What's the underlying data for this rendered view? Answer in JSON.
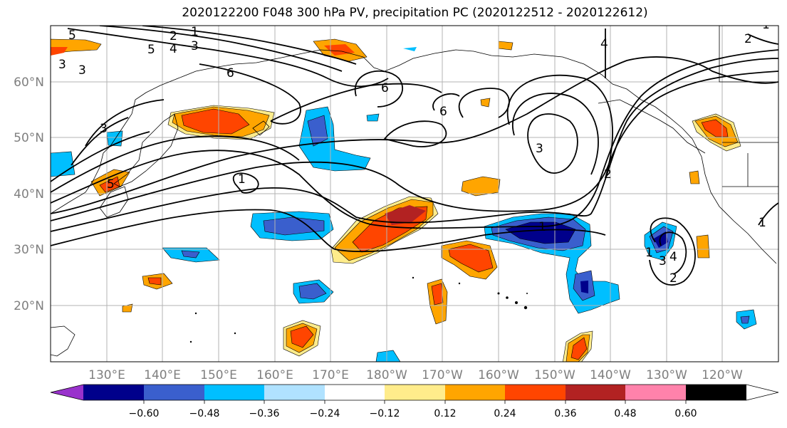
{
  "title": "2020122200 F048 300 hPa PV, precipitation PC (2020122512 - 2020122612)",
  "map": {
    "lat_labels": [
      "60°N",
      "50°N",
      "40°N",
      "30°N",
      "20°N"
    ],
    "lon_labels": [
      "130°E",
      "140°E",
      "150°E",
      "160°E",
      "170°E",
      "180°W",
      "170°W",
      "160°W",
      "150°W",
      "140°W",
      "130°W",
      "120°W"
    ],
    "contour_labels": [
      {
        "text": "5"
      },
      {
        "text": "2"
      },
      {
        "text": "1"
      },
      {
        "text": "5"
      },
      {
        "text": "4"
      },
      {
        "text": "3"
      },
      {
        "text": "3"
      },
      {
        "text": "3"
      },
      {
        "text": "6"
      },
      {
        "text": "6"
      },
      {
        "text": "6"
      },
      {
        "text": "4"
      },
      {
        "text": "3"
      },
      {
        "text": "3"
      },
      {
        "text": "1"
      },
      {
        "text": "2"
      },
      {
        "text": "1"
      },
      {
        "text": "1"
      },
      {
        "text": "3"
      },
      {
        "text": "4"
      },
      {
        "text": "2"
      },
      {
        "text": "2"
      },
      {
        "text": "1"
      },
      {
        "text": "5"
      },
      {
        "text": "1"
      }
    ]
  },
  "colorbar": {
    "ticks": [
      "−0.60",
      "−0.48",
      "−0.36",
      "−0.24",
      "−0.12",
      "0.12",
      "0.24",
      "0.36",
      "0.48",
      "0.60"
    ],
    "colors": [
      "#9932cc",
      "#00008b",
      "#3a5fcd",
      "#00bfff",
      "#b0e2ff",
      "#ffffff",
      "#ffec8b",
      "#ffa500",
      "#ff4500",
      "#b22222",
      "#ff82ab"
    ]
  }
}
